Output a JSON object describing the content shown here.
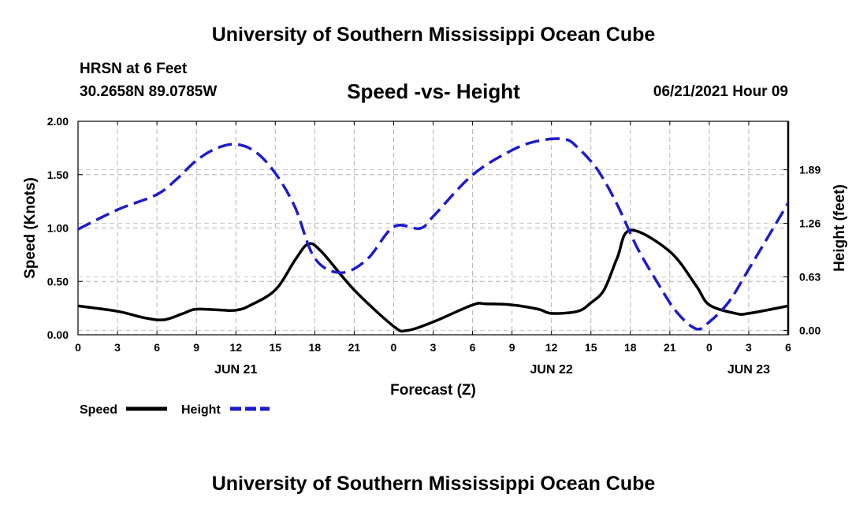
{
  "header": {
    "title": "University of Southern Mississippi Ocean Cube",
    "station": "HRSN at 6 Feet",
    "coords": "30.2658N  89.0785W",
    "subtitle": "Speed -vs- Height",
    "datetime": "06/21/2021 Hour 09"
  },
  "footer": {
    "title": "University of Southern Mississippi Ocean Cube"
  },
  "chart_data": {
    "type": "line",
    "xlabel": "Forecast (Z)",
    "ylabel": "Speed (Knots)",
    "y2label": "Height (feet)",
    "x_range_hours": [
      0,
      54
    ],
    "x_ticks": [
      "0",
      "3",
      "6",
      "9",
      "12",
      "15",
      "18",
      "21",
      "0",
      "3",
      "6",
      "9",
      "12",
      "15",
      "18",
      "21",
      "0",
      "3",
      "6"
    ],
    "day_labels": [
      {
        "label": "JUN 21",
        "hour": 12
      },
      {
        "label": "JUN 22",
        "hour": 36
      },
      {
        "label": "JUN 23",
        "hour": 51
      }
    ],
    "ylim": [
      0,
      2
    ],
    "y_ticks": [
      "0.00",
      "0.50",
      "1.00",
      "1.50",
      "2.00"
    ],
    "y2lim": [
      -0.05,
      2.46
    ],
    "y2_ticks": [
      "0.00",
      "0.63",
      "1.26",
      "1.89"
    ],
    "grid": true,
    "legend": "bottom-left",
    "series": [
      {
        "name": "Speed",
        "axis": "left",
        "color": "#000000",
        "style": "solid",
        "x": [
          0,
          3,
          5,
          6.5,
          8,
          9,
          11,
          12,
          13,
          15,
          16.5,
          17.5,
          18.5,
          21,
          24,
          25,
          27,
          30,
          31,
          33,
          35,
          36,
          38,
          39,
          40,
          41,
          42,
          45,
          47,
          48,
          50,
          51,
          54
        ],
        "values": [
          0.27,
          0.22,
          0.16,
          0.14,
          0.2,
          0.24,
          0.23,
          0.23,
          0.27,
          0.42,
          0.7,
          0.85,
          0.78,
          0.42,
          0.08,
          0.04,
          0.12,
          0.28,
          0.29,
          0.28,
          0.24,
          0.2,
          0.22,
          0.3,
          0.42,
          0.72,
          0.98,
          0.78,
          0.46,
          0.28,
          0.2,
          0.2,
          0.27
        ]
      },
      {
        "name": "Height",
        "axis": "right",
        "color": "#1c1ccc",
        "style": "dashed",
        "x": [
          0,
          3,
          6,
          7.5,
          9,
          10.5,
          12,
          13.5,
          15,
          16.5,
          18,
          20,
          22,
          24,
          26,
          27,
          30,
          33,
          35,
          37,
          38,
          39.5,
          41,
          42.5,
          44,
          45.5,
          47,
          48,
          49.5,
          51,
          54
        ],
        "values": [
          1.19,
          1.42,
          1.6,
          1.78,
          2.0,
          2.14,
          2.19,
          2.1,
          1.85,
          1.45,
          0.85,
          0.68,
          0.84,
          1.22,
          1.2,
          1.34,
          1.83,
          2.12,
          2.23,
          2.25,
          2.15,
          1.89,
          1.48,
          0.98,
          0.58,
          0.22,
          0.02,
          0.1,
          0.34,
          0.72,
          1.5
        ]
      }
    ]
  }
}
